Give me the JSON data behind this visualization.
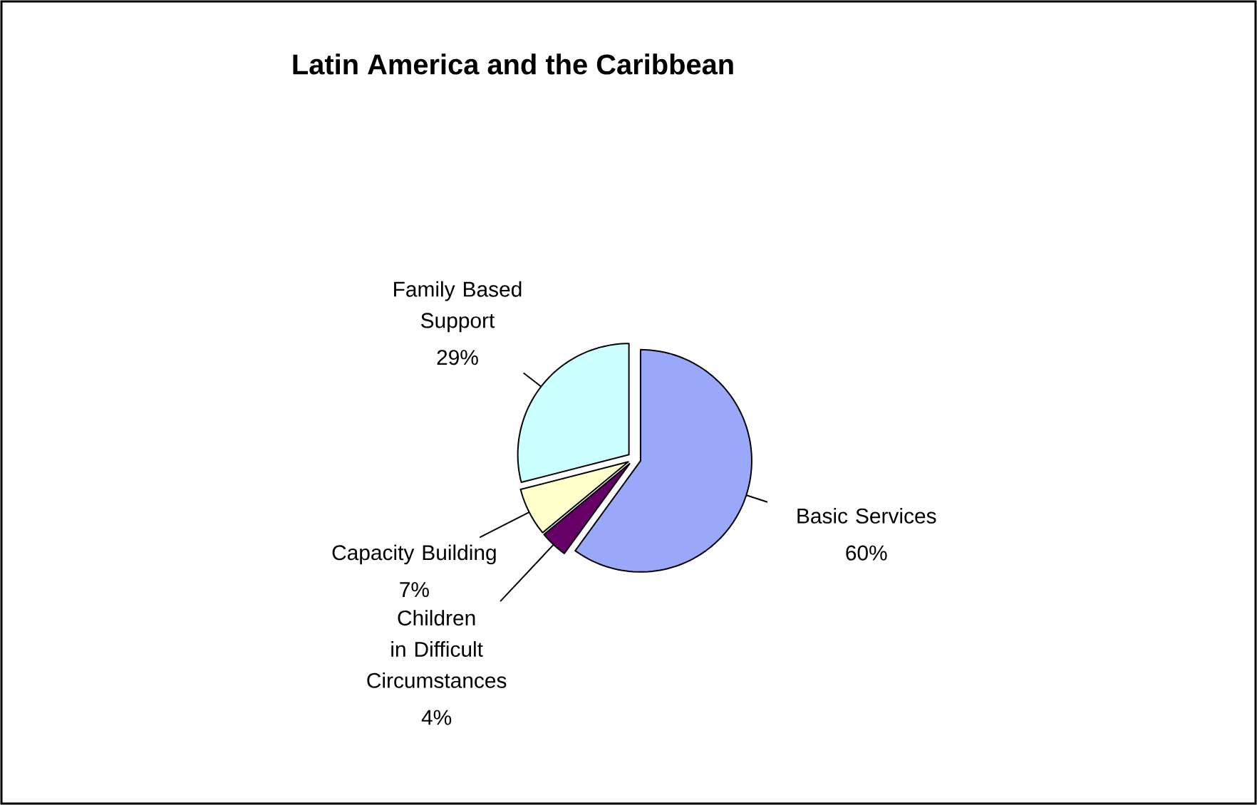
{
  "chart_data": {
    "type": "pie",
    "title": "Latin America and the Caribbean",
    "categories": [
      "Basic Services",
      "Children in Difficult Circumstances",
      "Capacity Building",
      "Family Based Support"
    ],
    "values": [
      60,
      4,
      7,
      29
    ],
    "value_labels": [
      "60%",
      "4%",
      "7%",
      "29%"
    ],
    "colors": [
      "#99a8f8",
      "#660066",
      "#ffffcc",
      "#ccffff"
    ]
  }
}
